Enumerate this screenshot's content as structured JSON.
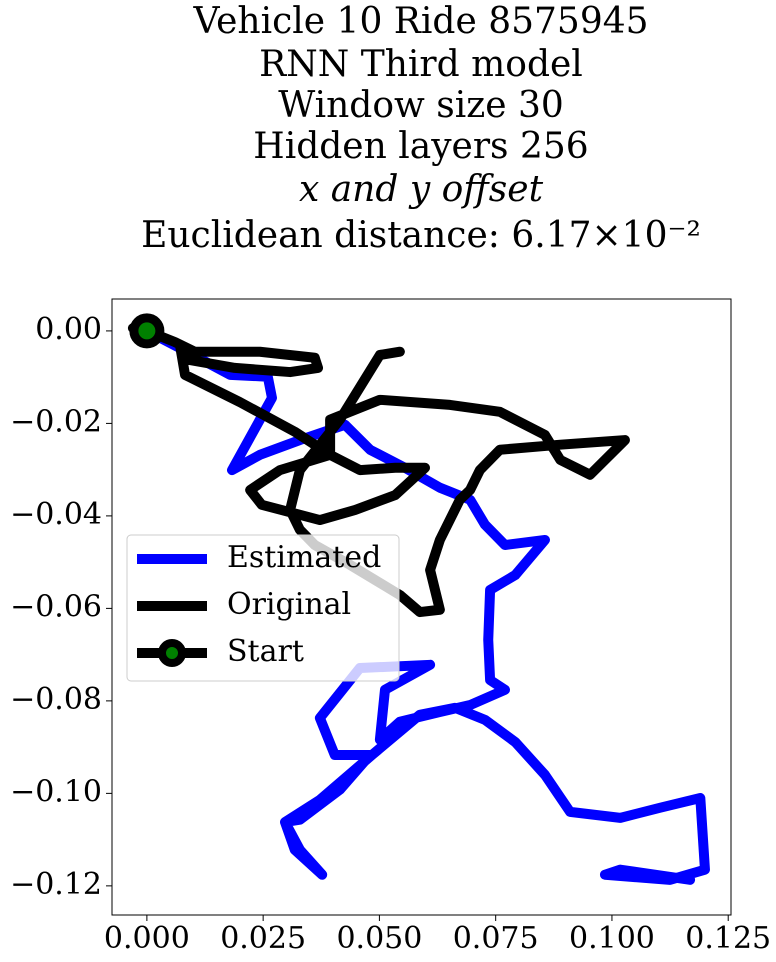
{
  "chart_data": {
    "type": "line",
    "title": [
      "Vehicle 10 Ride 8575945",
      "RNN Third model",
      "Window size 30",
      "Hidden layers 256",
      "x and y offset",
      "Euclidean distance: 6.17×10⁻²"
    ],
    "xlim": [
      -0.0075,
      0.1256
    ],
    "ylim": [
      -0.1263,
      0.0069
    ],
    "xticks": [
      {
        "value": 0,
        "label": "0.000"
      },
      {
        "value": 0.025,
        "label": "0.025"
      },
      {
        "value": 0.05,
        "label": "0.050"
      },
      {
        "value": 0.075,
        "label": "0.075"
      },
      {
        "value": 0.1,
        "label": "0.100"
      },
      {
        "value": 0.125,
        "label": "0.125"
      }
    ],
    "yticks": [
      {
        "value": 0,
        "label": "0.00"
      },
      {
        "value": -0.02,
        "label": "−0.02"
      },
      {
        "value": -0.04,
        "label": "−0.04"
      },
      {
        "value": -0.06,
        "label": "−0.06"
      },
      {
        "value": -0.08,
        "label": "−0.08"
      },
      {
        "value": -0.1,
        "label": "−0.10"
      },
      {
        "value": -0.12,
        "label": "−0.12"
      }
    ],
    "legend": "center left",
    "series": [
      {
        "name": "Estimated",
        "color": "#0000ff",
        "x": [
          0,
          0.0071,
          0.0179,
          0.026,
          0.0269,
          0.0243,
          0.0183,
          0.0243,
          0.0329,
          0.0426,
          0.048,
          0.0555,
          0.063,
          0.0695,
          0.0727,
          0.077,
          0.0856,
          0.0792,
          0.0738,
          0.0734,
          0.0738,
          0.077,
          0.0695,
          0.063,
          0.0544,
          0.0501,
          0.0512,
          0.0609,
          0.0458,
          0.0372,
          0.0404,
          0.048,
          0.0415,
          0.0329,
          0.0297,
          0.0318,
          0.0377,
          0.0329,
          0.0297,
          0.0372,
          0.0484,
          0.0587,
          0.0663,
          0.0727,
          0.0792,
          0.0856,
          0.091,
          0.1018,
          0.1104,
          0.119,
          0.12,
          0.1125,
          0.0985,
          0.1018,
          0.1168
        ],
        "y": [
          0,
          -0.0037,
          -0.0095,
          -0.0099,
          -0.0145,
          -0.0192,
          -0.0301,
          -0.0268,
          -0.0236,
          -0.0203,
          -0.0257,
          -0.0296,
          -0.0339,
          -0.0365,
          -0.0419,
          -0.0463,
          -0.0452,
          -0.0528,
          -0.056,
          -0.0668,
          -0.0755,
          -0.0776,
          -0.0809,
          -0.0824,
          -0.0845,
          -0.0884,
          -0.0776,
          -0.0722,
          -0.0729,
          -0.0837,
          -0.0917,
          -0.0917,
          -0.0992,
          -0.1057,
          -0.1062,
          -0.1122,
          -0.1176,
          -0.1122,
          -0.1062,
          -0.1014,
          -0.0917,
          -0.083,
          -0.0815,
          -0.0841,
          -0.0889,
          -0.096,
          -0.104,
          -0.1053,
          -0.1031,
          -0.101,
          -0.1165,
          -0.1187,
          -0.1176,
          -0.1165,
          -0.1187
        ]
      },
      {
        "name": "Original",
        "color": "#000000",
        "x": [
          -0.003,
          0,
          0.006,
          0.0103,
          0.0243,
          0.0361,
          0.0368,
          0.0308,
          0.0189,
          0.0093,
          0.0071,
          0.0082,
          0.02,
          0.0318,
          0.0394,
          0.0458,
          0.0534,
          0.0598,
          0.0534,
          0.0448,
          0.0372,
          0.0247,
          0.0222,
          0.0286,
          0.0394,
          0.0394,
          0.0501,
          0.0652,
          0.0759,
          0.0856,
          0.0889,
          0.0953,
          0.1028,
          0.0889,
          0.0759,
          0.0716,
          0.0695,
          0.0673,
          0.063,
          0.0609,
          0.063,
          0.0587,
          0.0544,
          0.0437,
          0.0361,
          0.0329,
          0.0308,
          0.0329,
          0.0415,
          0.0501,
          0.0544
        ],
        "y": [
          0.0006,
          0,
          -0.0024,
          -0.0045,
          -0.0045,
          -0.0058,
          -0.008,
          -0.0089,
          -0.008,
          -0.0063,
          -0.003,
          -0.0095,
          -0.0154,
          -0.0218,
          -0.0268,
          -0.0301,
          -0.0296,
          -0.0296,
          -0.0355,
          -0.0387,
          -0.0409,
          -0.0376,
          -0.0344,
          -0.0301,
          -0.0268,
          -0.0192,
          -0.0149,
          -0.016,
          -0.0175,
          -0.0225,
          -0.0279,
          -0.0311,
          -0.0236,
          -0.0246,
          -0.0257,
          -0.0301,
          -0.0344,
          -0.0365,
          -0.0452,
          -0.0517,
          -0.0603,
          -0.0608,
          -0.0571,
          -0.0506,
          -0.0463,
          -0.043,
          -0.0387,
          -0.0301,
          -0.0192,
          -0.0052,
          -0.0045
        ]
      },
      {
        "name": "Start",
        "color": "#000000",
        "marker_color": "#008000",
        "x": [
          0
        ],
        "y": [
          0
        ]
      }
    ]
  }
}
